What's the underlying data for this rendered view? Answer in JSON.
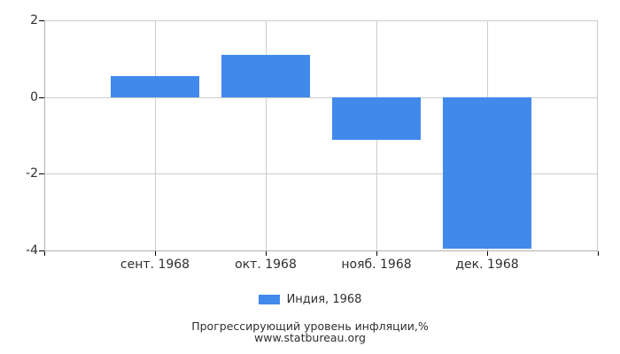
{
  "chart_data": {
    "type": "bar",
    "categories": [
      "сент. 1968",
      "окт. 1968",
      "нояб. 1968",
      "дек. 1968"
    ],
    "series": [
      {
        "name": "Индия, 1968",
        "values": [
          0.55,
          1.1,
          -1.1,
          -3.95
        ]
      }
    ],
    "title": "Прогрессирующий уровень инфляции,%",
    "subtitle": "www.statbureau.org",
    "xlabel": "",
    "ylabel": "",
    "ylim": [
      -4,
      2
    ],
    "yticks": [
      2,
      0,
      -2,
      -4
    ],
    "grid": true,
    "legend_position": "bottom",
    "bar_color": "#4289ec"
  },
  "colors": {
    "bar": "#4289ec",
    "grid": "#cccccc",
    "axis": "#b0b0b0",
    "tick": "#000000",
    "text": "#2f2f2f",
    "background": "#ffffff"
  },
  "legend": {
    "label": "Индия, 1968"
  },
  "footer": {
    "title": "Прогрессирующий уровень инфляции,%",
    "url": "www.statbureau.org"
  }
}
